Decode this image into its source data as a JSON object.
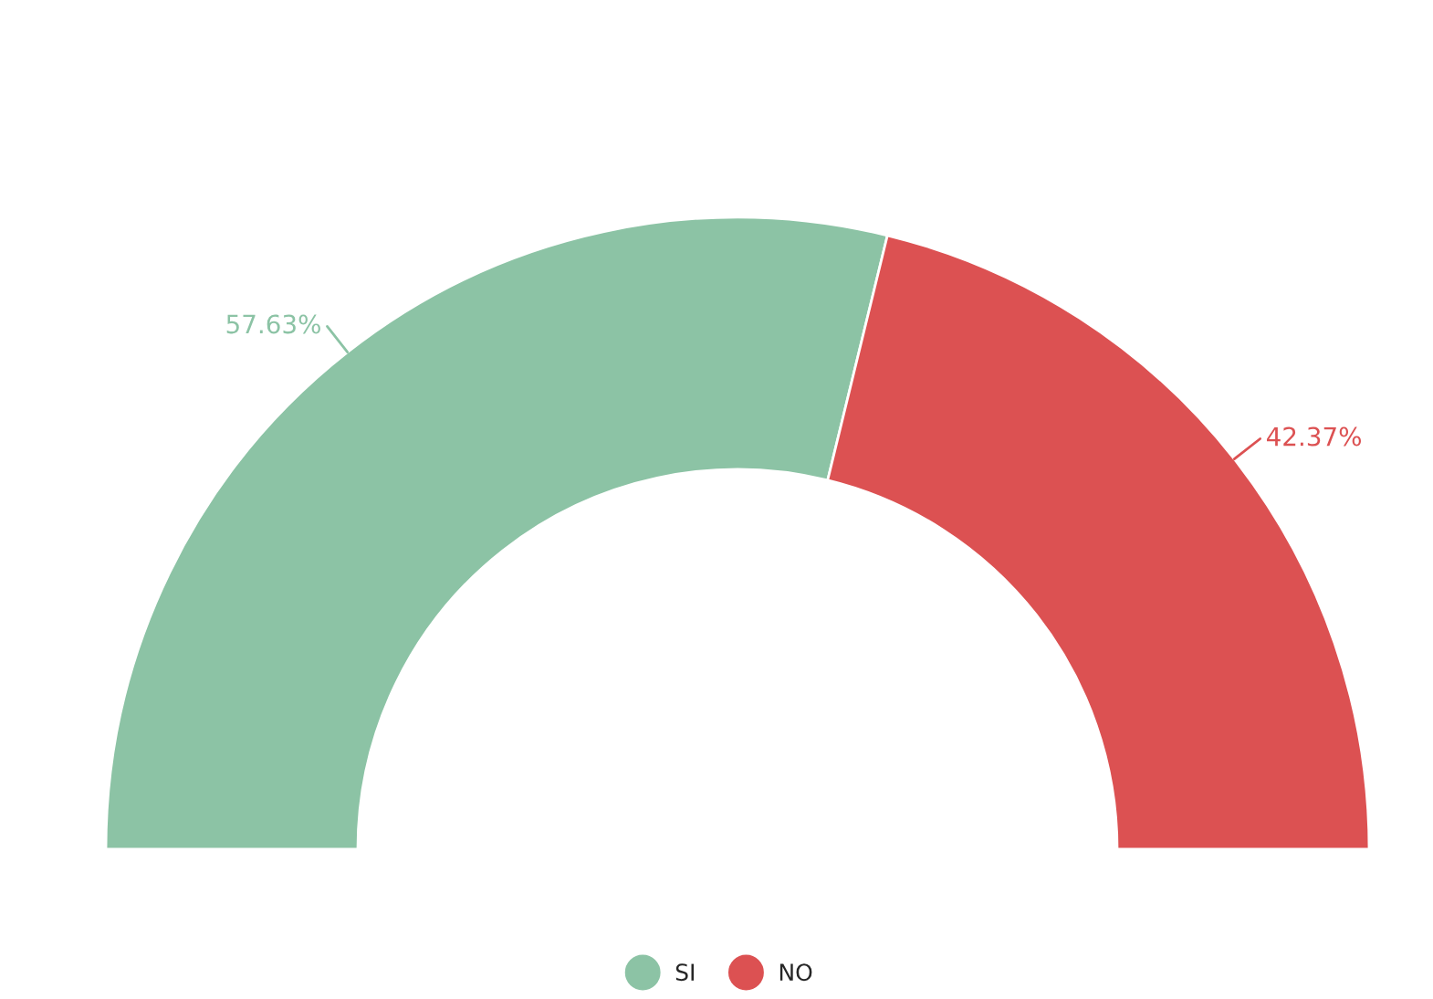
{
  "chart_data": {
    "type": "donut",
    "categories": [
      "SI",
      "NO"
    ],
    "values": [
      57.63,
      42.37
    ],
    "colors": [
      "#8cc3a5",
      "#dc5152"
    ],
    "value_labels": [
      "57.63%",
      "42.37%"
    ],
    "legend": "bottom"
  }
}
